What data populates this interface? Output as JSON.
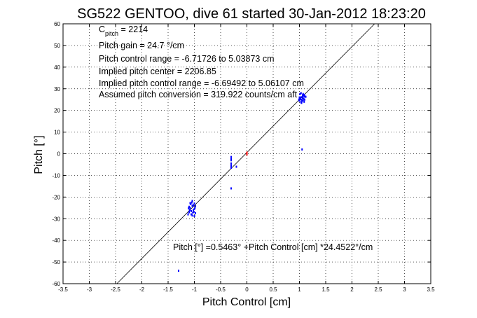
{
  "chart_data": {
    "type": "scatter",
    "title": "SG522 GENTOO, dive 61 started 30-Jan-2012 18:23:20",
    "xlabel": "Pitch Control [cm]",
    "ylabel": "Pitch [°]",
    "xlim": [
      -3.5,
      3.5
    ],
    "ylim": [
      -60,
      60
    ],
    "xticks": [
      -3.5,
      -3,
      -2.5,
      -2,
      -1.5,
      -1,
      -0.5,
      0,
      0.5,
      1,
      1.5,
      2,
      2.5,
      3,
      3.5
    ],
    "xtick_labels": [
      "-3.5",
      "-3",
      "-2.5",
      "-2",
      "-1.5",
      "-1",
      "-0.5",
      "0",
      "0.5",
      "1",
      "1.5",
      "2",
      "2.5",
      "3",
      "3.5"
    ],
    "yticks": [
      60,
      50,
      40,
      30,
      20,
      10,
      0,
      -10,
      -20,
      -30,
      -40,
      -50,
      -60
    ],
    "ytick_labels": [
      "60",
      "50",
      "40",
      "30",
      "20",
      "10",
      "0",
      "-10",
      "-20",
      "-30",
      "-40",
      "-50",
      "-60"
    ],
    "grid": true,
    "fit_line": {
      "intercept": 0.5463,
      "slope": 24.4522
    },
    "annotations": {
      "c_pitch_main": "C",
      "c_pitch_sub": "pitch",
      "c_pitch_value": " = 2214",
      "gain": "Pitch gain = 24.7 °/cm",
      "control_range": "Pitch control range = -6.71726 to 5.03873 cm",
      "implied_center": "Implied pitch center = 2206.85",
      "implied_range": "Implied pitch control range = -6.69492 to 5.06107 cm",
      "conversion": "Assumed pitch conversion = 319.922 counts/cm aft",
      "fit_equation": "Pitch [°] =0.5463° +Pitch Control [cm] *24.4522°/cm"
    },
    "series": [
      {
        "color": "#0000ff",
        "points": [
          [
            1.0,
            24.5
          ],
          [
            1.02,
            26.0
          ],
          [
            1.04,
            25.0
          ],
          [
            1.06,
            27.0
          ],
          [
            1.08,
            25.5
          ],
          [
            1.1,
            26.5
          ],
          [
            0.99,
            25.0
          ],
          [
            1.01,
            27.5
          ],
          [
            1.03,
            23.8
          ],
          [
            1.05,
            26.2
          ],
          [
            1.07,
            24.8
          ],
          [
            1.09,
            27.2
          ],
          [
            1.0,
            26.0
          ],
          [
            1.02,
            25.2
          ],
          [
            1.04,
            23.5
          ],
          [
            1.06,
            25.8
          ],
          [
            1.08,
            26.8
          ],
          [
            1.1,
            25.0
          ],
          [
            1.12,
            26.3
          ],
          [
            1.03,
            28.0
          ],
          [
            1.05,
            24.2
          ],
          [
            1.01,
            25.6
          ],
          [
            1.07,
            27.6
          ],
          [
            1.09,
            24.0
          ],
          [
            1.05,
            2.0
          ],
          [
            -1.1,
            -27.0
          ],
          [
            -1.08,
            -25.0
          ],
          [
            -1.06,
            -28.0
          ],
          [
            -1.04,
            -24.0
          ],
          [
            -1.02,
            -26.0
          ],
          [
            -1.0,
            -23.0
          ],
          [
            -0.98,
            -27.5
          ],
          [
            -1.1,
            -24.5
          ],
          [
            -1.08,
            -22.8
          ],
          [
            -1.06,
            -26.5
          ],
          [
            -1.04,
            -28.5
          ],
          [
            -1.02,
            -23.8
          ],
          [
            -1.0,
            -25.5
          ],
          [
            -0.98,
            -24.2
          ],
          [
            -1.12,
            -28.0
          ],
          [
            -1.05,
            -22.5
          ],
          [
            -1.03,
            -27.2
          ],
          [
            -1.01,
            -26.8
          ],
          [
            -0.99,
            -25.0
          ],
          [
            -1.07,
            -23.2
          ],
          [
            -1.09,
            -26.0
          ],
          [
            -1.11,
            -25.2
          ],
          [
            -1.0,
            -28.8
          ],
          [
            -1.04,
            -21.8
          ],
          [
            -0.3,
            -3.0
          ],
          [
            -0.3,
            -4.5
          ],
          [
            -0.3,
            -1.5
          ],
          [
            -0.3,
            -5.5
          ],
          [
            -0.3,
            -2.5
          ],
          [
            -0.3,
            -6.5
          ],
          [
            -0.3,
            -16.0
          ],
          [
            -0.2,
            -6.0
          ],
          [
            -1.3,
            -54.0
          ]
        ]
      },
      {
        "color": "#ff0000",
        "points": [
          [
            0.0,
            0.5
          ],
          [
            0.0,
            -0.3
          ]
        ]
      }
    ]
  }
}
